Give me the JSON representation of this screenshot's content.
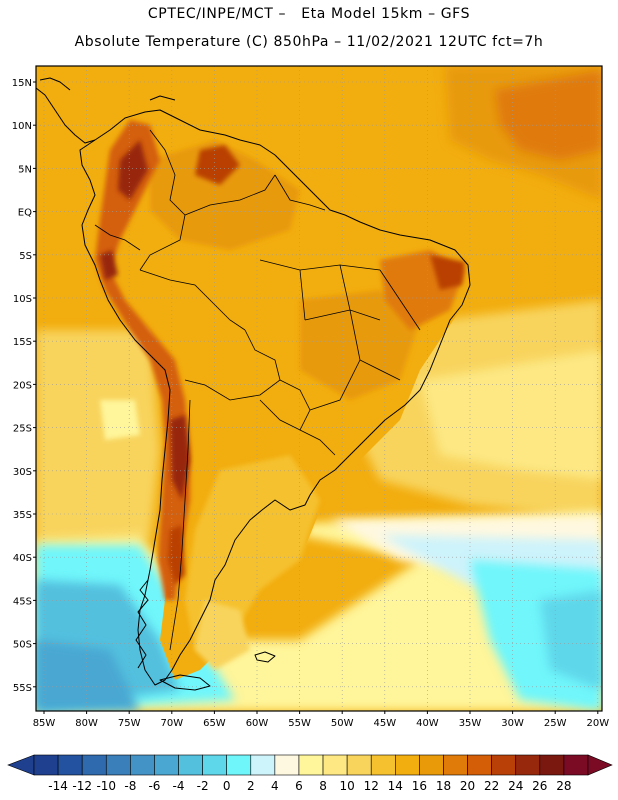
{
  "header": {
    "line1": "CPTEC/INPE/MCT –   Eta Model 15km – GFS",
    "line2": "Absolute Temperature (C) 850hPa – 11/02/2021 12UTC fct=7h"
  },
  "map": {
    "lat_labels": [
      "15N",
      "10N",
      "5N",
      "EQ",
      "5S",
      "10S",
      "15S",
      "20S",
      "25S",
      "30S",
      "35S",
      "40S",
      "45S",
      "50S",
      "55S"
    ],
    "lon_labels": [
      "85W",
      "80W",
      "75W",
      "70W",
      "65W",
      "60W",
      "55W",
      "50W",
      "45W",
      "40W",
      "35W",
      "30W",
      "25W",
      "20W"
    ]
  },
  "colorbar": {
    "ticks": [
      "-14",
      "-12",
      "-10",
      "-8",
      "-6",
      "-4",
      "-2",
      "0",
      "2",
      "4",
      "6",
      "8",
      "10",
      "12",
      "14",
      "16",
      "18",
      "20",
      "22",
      "24",
      "26",
      "28"
    ],
    "colors": [
      "#1f3f8f",
      "#2353a0",
      "#2f6aae",
      "#3b7fba",
      "#4493c6",
      "#4aa7d2",
      "#53c0de",
      "#5fd7ea",
      "#6ff6fb",
      "#cdf3fb",
      "#fff8e0",
      "#fff59a",
      "#fde884",
      "#f8d45d",
      "#f5c12e",
      "#f2ad0e",
      "#e89a08",
      "#e07a08",
      "#d45e08",
      "#b94006",
      "#97280c",
      "#7a1810",
      "#7b0a25"
    ],
    "over_color": "#7b0a25",
    "under_color": "#1f3f8f"
  },
  "palette": {
    "frame": "#000000",
    "grid": "#9a9a9a",
    "coast": "#000000"
  }
}
